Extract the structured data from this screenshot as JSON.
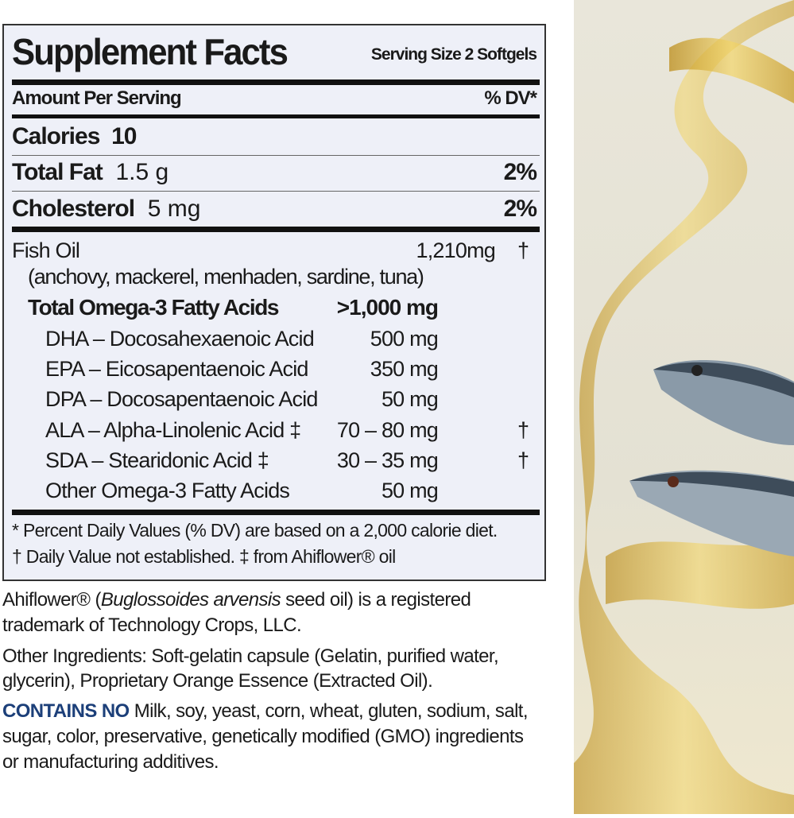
{
  "label": {
    "title": "Supplement Facts",
    "serving_size": "Serving Size 2 Softgels",
    "amount_per_serving": "Amount Per Serving",
    "dv_header": "% DV*",
    "calories": {
      "name": "Calories",
      "amount": "10"
    },
    "total_fat": {
      "name": "Total Fat",
      "amount": "1.5 g",
      "dv": "2%"
    },
    "cholesterol": {
      "name": "Cholesterol",
      "amount": "5 mg",
      "dv": "2%"
    },
    "fish_oil": {
      "name": "Fish Oil",
      "amount": "1,210mg",
      "dv": "†",
      "sources": "(anchovy, mackerel, menhaden, sardine, tuna)"
    },
    "omega3": {
      "name": "Total Omega-3 Fatty Acids",
      "amount": ">1,000 mg"
    },
    "acids": [
      {
        "name": "DHA – Docosahexaenoic Acid",
        "amount": "500 mg",
        "dv": ""
      },
      {
        "name": "EPA – Eicosapentaenoic Acid",
        "amount": "350 mg",
        "dv": ""
      },
      {
        "name": "DPA – Docosapentaenoic Acid",
        "amount": "50 mg",
        "dv": ""
      },
      {
        "name": "ALA – Alpha-Linolenic Acid ‡",
        "amount": "70 – 80 mg",
        "dv": "†"
      },
      {
        "name": "SDA – Stearidonic Acid ‡",
        "amount": "30 – 35 mg",
        "dv": "†"
      },
      {
        "name": "Other Omega-3 Fatty Acids",
        "amount": "50 mg",
        "dv": ""
      }
    ],
    "footnote1": "* Percent Daily Values (% DV) are based on a 2,000 calorie diet.",
    "footnote2": "† Daily Value not established. ‡ from Ahiflower® oil"
  },
  "notes": {
    "ahiflower_pre": "Ahiflower® (",
    "ahiflower_italic": "Buglossoides arvensis",
    "ahiflower_post": " seed oil) is a registered",
    "ahiflower_line2": "trademark of Technology Crops, LLC.",
    "other_line1": "Other Ingredients: Soft-gelatin capsule (Gelatin, purified water,",
    "other_line2": "glycerin), Proprietary Orange Essence (Extracted Oil).",
    "contains_no_label": "CONTAINS NO",
    "contains_no_line1": " Milk, soy, yeast, corn, wheat, gluten, sodium, salt,",
    "contains_no_line2": "sugar, color, preservative, genetically modified (GMO) ingredients",
    "contains_no_line3": "or manufacturing additives."
  },
  "colors": {
    "label_bg": "#eef0f8",
    "contains_no": "#1c3f79",
    "oil": "#d9b43a"
  }
}
